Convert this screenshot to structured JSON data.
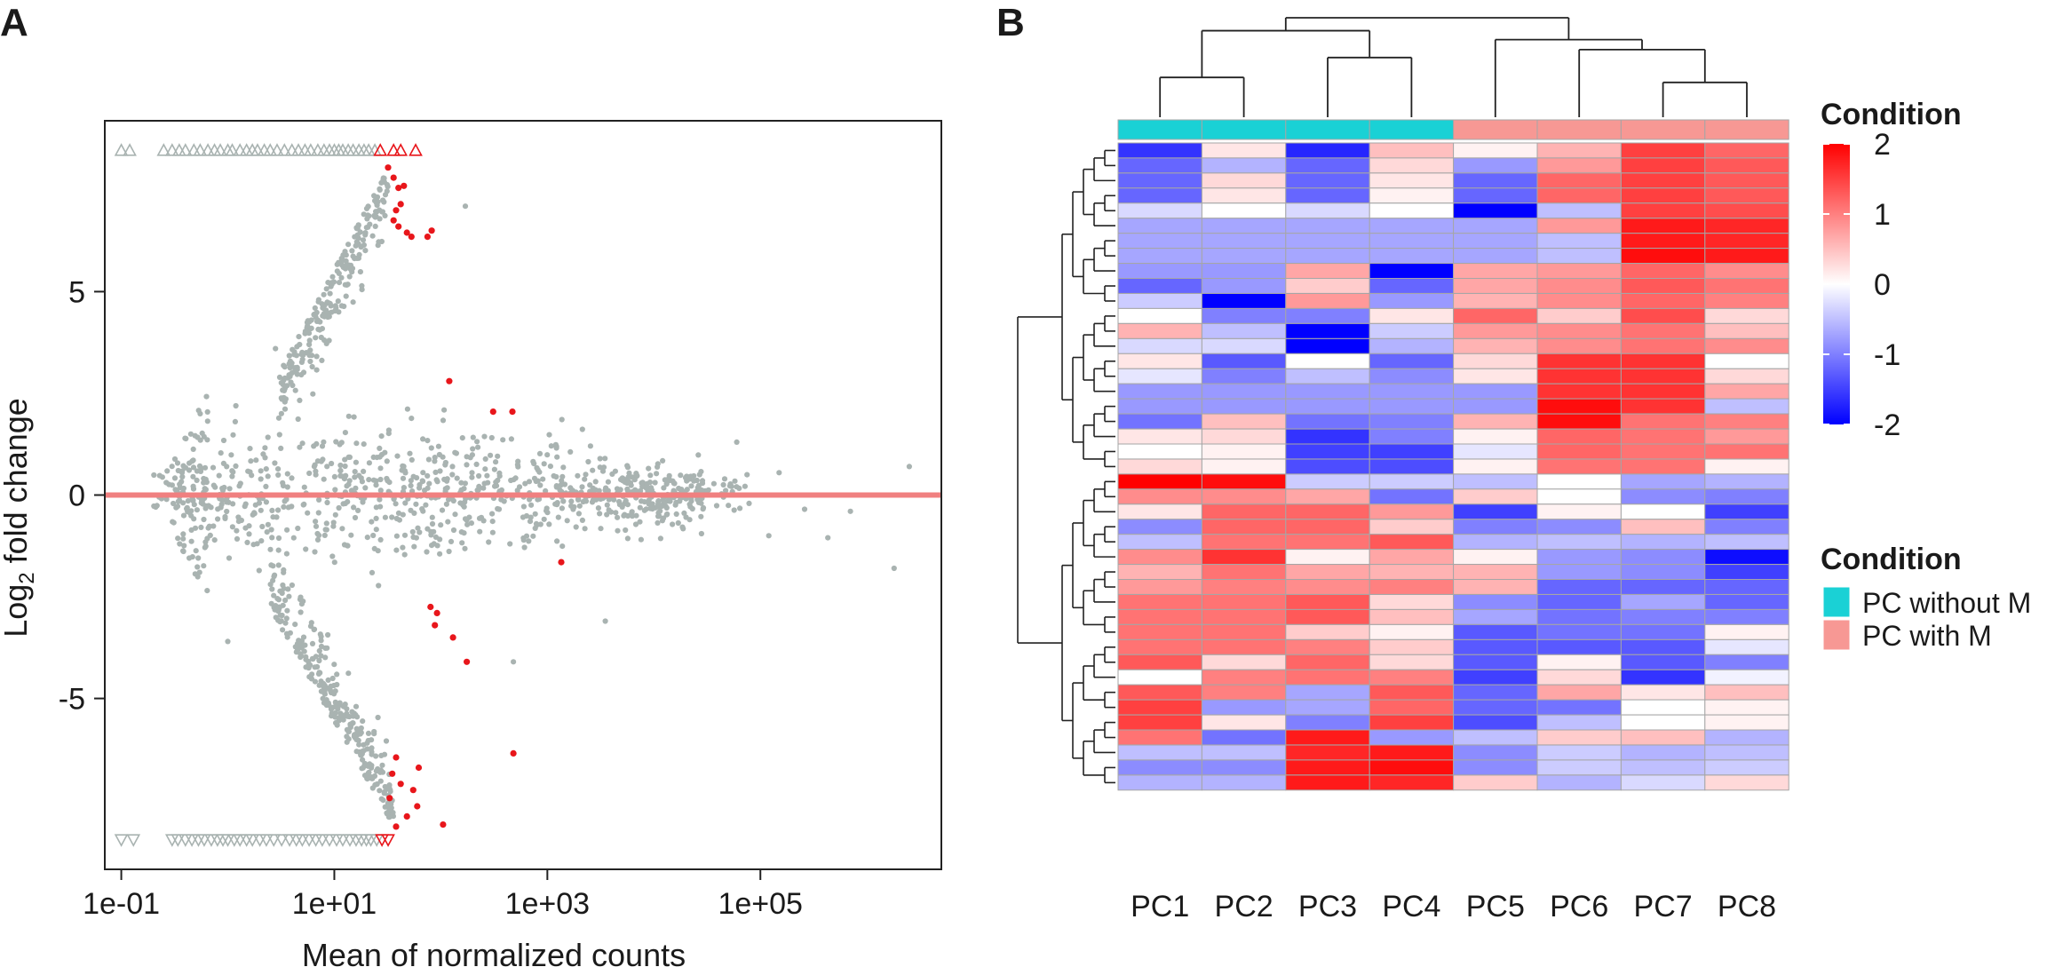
{
  "panel_labels": [
    "A",
    "B"
  ],
  "chart_data": [
    {
      "panel": "A",
      "type": "scatter",
      "xlabel": "Mean of normalized counts",
      "ylabel": "Log2 fold change",
      "ylabel_parts": {
        "pre": "Log",
        "sub": "2",
        "post": " fold change"
      },
      "x_scale": "log10",
      "xlim": [
        0.07,
        5000000
      ],
      "ylim": [
        -9.2,
        9.2
      ],
      "x_ticks": [
        0.1,
        10,
        1000,
        100000
      ],
      "x_tick_labels": [
        "1e-01",
        "1e+01",
        "1e+03",
        "1e+05"
      ],
      "y_ticks": [
        -5,
        0,
        5
      ],
      "y_tick_labels": [
        "-5",
        "0",
        "5"
      ],
      "reference_line": {
        "y": 0,
        "color": "#f08080"
      },
      "grid": false,
      "colors": {
        "not_significant": "#a9b3b1",
        "significant": "#e8161b"
      },
      "capped_points": {
        "y_top": 8.45,
        "y_bottom": -8.45,
        "top_grey_x": [
          0.1,
          0.12,
          0.25,
          0.3,
          0.35,
          0.4,
          0.48,
          0.55,
          0.65,
          0.75,
          0.85,
          1.0,
          1.1,
          1.3,
          1.5,
          1.7,
          1.9,
          2.2,
          2.5,
          2.9,
          3.4,
          4.0,
          4.6,
          5.3,
          6.0,
          7.0,
          8.0,
          9.0,
          10,
          11,
          12,
          13.5,
          15,
          17,
          19,
          21,
          24
        ],
        "top_red_x": [
          27,
          36,
          42,
          58
        ],
        "bottom_grey_x": [
          0.1,
          0.13,
          0.3,
          0.34,
          0.4,
          0.46,
          0.53,
          0.6,
          0.7,
          0.8,
          0.9,
          1.0,
          1.15,
          1.3,
          1.5,
          1.7,
          2.0,
          2.3,
          2.7,
          3.2,
          3.8,
          4.4,
          5.0,
          5.8,
          6.7,
          7.7,
          9.0,
          10.5,
          12,
          14,
          16,
          18,
          20,
          22,
          25
        ],
        "bottom_red_x": [
          28,
          32
        ]
      },
      "significant_points": [
        [
          32,
          8.05
        ],
        [
          36,
          7.8
        ],
        [
          40,
          7.55
        ],
        [
          45,
          7.6
        ],
        [
          38,
          7.0
        ],
        [
          42,
          7.15
        ],
        [
          36,
          6.75
        ],
        [
          40,
          6.6
        ],
        [
          48,
          6.45
        ],
        [
          53,
          6.35
        ],
        [
          75,
          6.35
        ],
        [
          82,
          6.5
        ],
        [
          120,
          2.8
        ],
        [
          310,
          2.05
        ],
        [
          470,
          2.05
        ],
        [
          1350,
          -1.65
        ],
        [
          80,
          -2.75
        ],
        [
          92,
          -2.9
        ],
        [
          88,
          -3.2
        ],
        [
          130,
          -3.5
        ],
        [
          175,
          -4.1
        ],
        [
          38,
          -6.45
        ],
        [
          35,
          -6.85
        ],
        [
          62,
          -6.7
        ],
        [
          42,
          -7.1
        ],
        [
          55,
          -7.25
        ],
        [
          33,
          -7.45
        ],
        [
          60,
          -7.65
        ],
        [
          48,
          -7.9
        ],
        [
          38,
          -8.15
        ],
        [
          105,
          -8.1
        ],
        [
          480,
          -6.35
        ]
      ],
      "notable_grey_points": [
        [
          170,
          7.1
        ],
        [
          11,
          4.5
        ],
        [
          7,
          4.3
        ],
        [
          2.8,
          3.6
        ],
        [
          4,
          3.0
        ],
        [
          0.55,
          2.0
        ],
        [
          0.45,
          1.5
        ],
        [
          60000,
          1.3
        ],
        [
          1.0,
          -3.6
        ],
        [
          3.0,
          -2.8
        ],
        [
          6.5,
          -3.3
        ],
        [
          3500,
          -3.1
        ],
        [
          480,
          -4.1
        ],
        [
          28000,
          -0.95
        ],
        [
          120000,
          -1.0
        ],
        [
          2500000,
          0.7
        ],
        [
          1800000,
          -1.8
        ],
        [
          430000,
          -1.05
        ],
        [
          700000,
          -0.4
        ],
        [
          260000,
          -0.35
        ],
        [
          150000,
          0.55
        ],
        [
          75000,
          0.5
        ],
        [
          45000,
          0.25
        ]
      ]
    },
    {
      "panel": "B",
      "type": "heatmap",
      "columns": [
        "PC1",
        "PC2",
        "PC3",
        "PC4",
        "PC5",
        "PC6",
        "PC7",
        "PC8"
      ],
      "column_condition": [
        "PC without M",
        "PC without M",
        "PC without M",
        "PC without M",
        "PC with M",
        "PC with M",
        "PC with M",
        "PC with M"
      ],
      "values": [
        [
          -1.6,
          0.2,
          -1.7,
          0.5,
          0.1,
          0.6,
          1.5,
          1.2
        ],
        [
          -1.2,
          -0.6,
          -1.2,
          0.3,
          -0.8,
          0.8,
          1.5,
          1.3
        ],
        [
          -1.2,
          0.3,
          -1.2,
          0.2,
          -1.2,
          1.2,
          1.5,
          1.3
        ],
        [
          -1.2,
          0.2,
          -1.2,
          0.1,
          -1.2,
          1.2,
          1.5,
          1.3
        ],
        [
          -0.3,
          0.0,
          -0.3,
          0.0,
          -2.0,
          -0.5,
          1.5,
          1.4
        ],
        [
          -0.7,
          -0.7,
          -0.7,
          -0.7,
          -0.7,
          0.8,
          1.8,
          1.7
        ],
        [
          -0.7,
          -0.7,
          -0.7,
          -0.7,
          -0.7,
          -0.5,
          1.8,
          1.7
        ],
        [
          -0.7,
          -0.7,
          -0.7,
          -0.7,
          -0.7,
          -0.5,
          1.9,
          1.8
        ],
        [
          -0.8,
          -0.8,
          0.7,
          -2.0,
          0.7,
          0.8,
          1.2,
          0.9
        ],
        [
          -1.2,
          -0.8,
          0.4,
          -1.2,
          0.7,
          0.9,
          1.3,
          1.1
        ],
        [
          -0.4,
          -2.1,
          0.8,
          -0.8,
          0.6,
          0.9,
          1.2,
          1.0
        ],
        [
          0.0,
          -1.0,
          -1.0,
          0.2,
          1.2,
          0.4,
          1.4,
          0.3
        ],
        [
          0.6,
          -0.5,
          -2.0,
          -0.4,
          0.8,
          0.9,
          1.1,
          0.5
        ],
        [
          -0.3,
          -0.3,
          -2.0,
          -0.6,
          0.6,
          0.9,
          1.1,
          0.9
        ],
        [
          0.2,
          -1.3,
          0.0,
          -1.2,
          0.3,
          1.6,
          1.6,
          0.0
        ],
        [
          -0.2,
          -1.0,
          -0.5,
          -0.9,
          0.2,
          1.6,
          1.6,
          0.3
        ],
        [
          -0.8,
          -0.8,
          -0.8,
          -0.8,
          -0.8,
          1.6,
          1.6,
          0.7
        ],
        [
          -0.8,
          -0.8,
          -0.8,
          -0.8,
          -0.8,
          1.9,
          1.6,
          -0.5
        ],
        [
          -1.1,
          0.5,
          -1.1,
          -1.0,
          0.6,
          1.9,
          1.1,
          1.0
        ],
        [
          0.2,
          0.3,
          -1.6,
          -1.0,
          0.1,
          1.2,
          1.1,
          0.8
        ],
        [
          0.0,
          0.1,
          -1.5,
          -1.5,
          -0.2,
          1.2,
          1.1,
          1.1
        ],
        [
          0.3,
          0.1,
          -1.4,
          -1.4,
          0.1,
          1.1,
          1.1,
          0.1
        ],
        [
          2.0,
          1.9,
          -0.4,
          -0.4,
          -0.5,
          0.0,
          -0.7,
          -0.6
        ],
        [
          0.9,
          0.9,
          0.7,
          -1.1,
          0.4,
          0.0,
          -0.9,
          -1.0
        ],
        [
          0.2,
          1.2,
          1.2,
          0.8,
          -1.5,
          0.1,
          0.0,
          -1.5
        ],
        [
          -0.9,
          1.2,
          1.2,
          0.4,
          -1.0,
          -0.9,
          0.5,
          -1.0
        ],
        [
          -0.5,
          1.1,
          1.1,
          1.3,
          -0.6,
          -0.5,
          -0.6,
          -0.5
        ],
        [
          0.9,
          1.6,
          0.1,
          0.7,
          0.1,
          -0.8,
          -0.9,
          -1.9
        ],
        [
          0.6,
          1.1,
          0.7,
          0.6,
          0.6,
          -0.8,
          -0.9,
          -1.5
        ],
        [
          0.8,
          1.0,
          0.9,
          1.0,
          0.6,
          -1.2,
          -1.2,
          -1.2
        ],
        [
          1.1,
          1.1,
          1.3,
          0.3,
          -0.9,
          -1.2,
          -0.7,
          -1.2
        ],
        [
          1.1,
          1.1,
          1.3,
          0.5,
          -0.7,
          -1.1,
          -1.0,
          -1.0
        ],
        [
          1.1,
          1.1,
          0.4,
          0.1,
          -1.3,
          -1.1,
          -1.1,
          0.1
        ],
        [
          1.1,
          1.1,
          1.0,
          0.4,
          -1.3,
          -1.3,
          -1.3,
          -0.2
        ],
        [
          1.3,
          0.3,
          1.2,
          0.3,
          -1.3,
          0.1,
          -1.3,
          -1.0
        ],
        [
          0.0,
          1.0,
          1.1,
          1.0,
          -1.5,
          0.3,
          -1.6,
          -0.1
        ],
        [
          1.3,
          1.0,
          -0.7,
          1.3,
          -1.2,
          0.7,
          0.2,
          0.5
        ],
        [
          1.5,
          -0.8,
          -0.7,
          1.2,
          -1.2,
          -1.1,
          0.0,
          0.1
        ],
        [
          1.5,
          0.2,
          -1.0,
          1.5,
          -1.4,
          -0.5,
          0.0,
          0.1
        ],
        [
          1.1,
          -1.1,
          1.8,
          -0.8,
          -0.5,
          0.4,
          0.5,
          -0.6
        ],
        [
          -0.5,
          -0.5,
          1.7,
          1.8,
          -0.9,
          -0.4,
          -0.6,
          -0.5
        ],
        [
          -0.9,
          -0.9,
          1.8,
          1.9,
          -0.9,
          -0.4,
          -0.5,
          -0.4
        ],
        [
          -0.6,
          -0.6,
          1.8,
          1.7,
          0.4,
          -0.6,
          -0.3,
          0.3
        ]
      ],
      "color_scale": {
        "min": -2,
        "mid": 0,
        "max": 2,
        "low_color": "#0000ff",
        "mid_color": "#ffffff",
        "high_color": "#ff0000"
      },
      "color_legend": {
        "title": "Condition",
        "ticks": [
          2,
          1,
          0,
          -1,
          -2
        ],
        "tick_labels": [
          "2",
          "1",
          "0",
          "-1",
          "-2"
        ]
      },
      "annotation_legend": {
        "title": "Condition",
        "entries": [
          {
            "label": "PC without M",
            "color": "#1ad1d5"
          },
          {
            "label": "PC with M",
            "color": "#f79894"
          }
        ]
      },
      "column_dendrogram": {
        "merges": [
          [
            0,
            1,
            0.4
          ],
          [
            2,
            3,
            0.6
          ],
          [
            6,
            7,
            0.35
          ],
          [
            5,
            "g3",
            0.68
          ],
          [
            "g1",
            "g2",
            0.87
          ],
          [
            4,
            "g4",
            0.78
          ],
          [
            "g5",
            "g6",
            1.0
          ]
        ]
      },
      "row_dendrogram_split": 22
    }
  ]
}
